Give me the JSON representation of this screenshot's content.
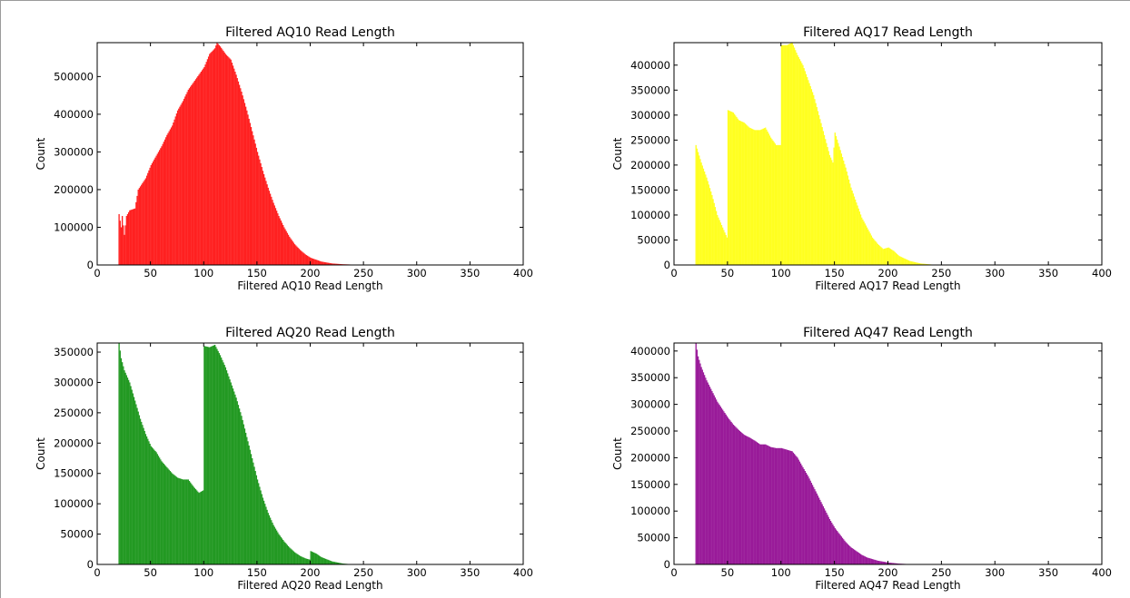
{
  "chart_data": [
    {
      "type": "bar",
      "title": "Filtered AQ10 Read Length",
      "xlabel": "Filtered AQ10 Read Length",
      "ylabel": "Count",
      "xlim": [
        0,
        400
      ],
      "ylim": [
        0,
        590000
      ],
      "xticks": [
        0,
        50,
        100,
        150,
        200,
        250,
        300,
        350,
        400
      ],
      "yticks": [
        0,
        100000,
        200000,
        300000,
        400000,
        500000
      ],
      "grid": false,
      "color": "#ff2020",
      "bar_width": 1,
      "profile": [
        [
          20,
          135000
        ],
        [
          22,
          100000
        ],
        [
          23,
          130000
        ],
        [
          25,
          80000
        ],
        [
          27,
          130000
        ],
        [
          30,
          145000
        ],
        [
          35,
          150000
        ],
        [
          38,
          200000
        ],
        [
          45,
          230000
        ],
        [
          50,
          265000
        ],
        [
          55,
          290000
        ],
        [
          60,
          315000
        ],
        [
          65,
          345000
        ],
        [
          70,
          370000
        ],
        [
          75,
          410000
        ],
        [
          80,
          435000
        ],
        [
          85,
          465000
        ],
        [
          90,
          485000
        ],
        [
          95,
          505000
        ],
        [
          100,
          525000
        ],
        [
          105,
          560000
        ],
        [
          110,
          575000
        ],
        [
          112,
          590000
        ],
        [
          115,
          580000
        ],
        [
          120,
          560000
        ],
        [
          125,
          545000
        ],
        [
          130,
          505000
        ],
        [
          135,
          460000
        ],
        [
          140,
          410000
        ],
        [
          145,
          355000
        ],
        [
          150,
          300000
        ],
        [
          155,
          250000
        ],
        [
          160,
          205000
        ],
        [
          165,
          165000
        ],
        [
          170,
          130000
        ],
        [
          175,
          100000
        ],
        [
          180,
          75000
        ],
        [
          185,
          55000
        ],
        [
          190,
          40000
        ],
        [
          195,
          28000
        ],
        [
          200,
          19000
        ],
        [
          210,
          9000
        ],
        [
          220,
          4000
        ],
        [
          230,
          2000
        ],
        [
          240,
          1000
        ],
        [
          250,
          500
        ],
        [
          255,
          0
        ]
      ]
    },
    {
      "type": "bar",
      "title": "Filtered AQ17 Read Length",
      "xlabel": "Filtered AQ17 Read Length",
      "ylabel": "Count",
      "xlim": [
        0,
        400
      ],
      "ylim": [
        0,
        445000
      ],
      "xticks": [
        0,
        50,
        100,
        150,
        200,
        250,
        300,
        350,
        400
      ],
      "yticks": [
        0,
        50000,
        100000,
        150000,
        200000,
        250000,
        300000,
        350000,
        400000
      ],
      "grid": false,
      "color": "#ffff20",
      "bar_width": 1,
      "profile": [
        [
          20,
          240000
        ],
        [
          25,
          205000
        ],
        [
          30,
          175000
        ],
        [
          35,
          140000
        ],
        [
          40,
          100000
        ],
        [
          45,
          75000
        ],
        [
          49,
          55000
        ],
        [
          50,
          310000
        ],
        [
          55,
          305000
        ],
        [
          60,
          290000
        ],
        [
          65,
          285000
        ],
        [
          70,
          275000
        ],
        [
          75,
          270000
        ],
        [
          80,
          270000
        ],
        [
          85,
          275000
        ],
        [
          90,
          255000
        ],
        [
          95,
          240000
        ],
        [
          99,
          240000
        ],
        [
          100,
          440000
        ],
        [
          105,
          440000
        ],
        [
          110,
          445000
        ],
        [
          115,
          420000
        ],
        [
          120,
          400000
        ],
        [
          125,
          370000
        ],
        [
          130,
          340000
        ],
        [
          135,
          300000
        ],
        [
          140,
          260000
        ],
        [
          145,
          220000
        ],
        [
          148,
          205000
        ],
        [
          150,
          265000
        ],
        [
          155,
          230000
        ],
        [
          160,
          195000
        ],
        [
          165,
          155000
        ],
        [
          170,
          125000
        ],
        [
          175,
          95000
        ],
        [
          180,
          75000
        ],
        [
          185,
          55000
        ],
        [
          190,
          42000
        ],
        [
          195,
          32000
        ],
        [
          200,
          35000
        ],
        [
          205,
          28000
        ],
        [
          210,
          18000
        ],
        [
          220,
          8000
        ],
        [
          230,
          3000
        ],
        [
          240,
          1000
        ],
        [
          245,
          0
        ]
      ]
    },
    {
      "type": "bar",
      "title": "Filtered AQ20 Read Length",
      "xlabel": "Filtered AQ20 Read Length",
      "ylabel": "Count",
      "xlim": [
        0,
        400
      ],
      "ylim": [
        0,
        365000
      ],
      "xticks": [
        0,
        50,
        100,
        150,
        200,
        250,
        300,
        350,
        400
      ],
      "yticks": [
        0,
        50000,
        100000,
        150000,
        200000,
        250000,
        300000,
        350000
      ],
      "grid": false,
      "color": "#229922",
      "bar_width": 1,
      "profile": [
        [
          20,
          365000
        ],
        [
          22,
          340000
        ],
        [
          25,
          320000
        ],
        [
          30,
          300000
        ],
        [
          35,
          270000
        ],
        [
          40,
          240000
        ],
        [
          45,
          215000
        ],
        [
          50,
          195000
        ],
        [
          55,
          185000
        ],
        [
          60,
          170000
        ],
        [
          65,
          160000
        ],
        [
          70,
          150000
        ],
        [
          75,
          143000
        ],
        [
          80,
          140000
        ],
        [
          85,
          140000
        ],
        [
          90,
          128000
        ],
        [
          95,
          118000
        ],
        [
          99,
          122000
        ],
        [
          100,
          360000
        ],
        [
          105,
          358000
        ],
        [
          110,
          362000
        ],
        [
          115,
          345000
        ],
        [
          120,
          325000
        ],
        [
          125,
          300000
        ],
        [
          130,
          275000
        ],
        [
          135,
          245000
        ],
        [
          140,
          210000
        ],
        [
          145,
          175000
        ],
        [
          150,
          140000
        ],
        [
          155,
          110000
        ],
        [
          160,
          85000
        ],
        [
          165,
          65000
        ],
        [
          170,
          50000
        ],
        [
          175,
          38000
        ],
        [
          180,
          28000
        ],
        [
          185,
          20000
        ],
        [
          190,
          14000
        ],
        [
          195,
          10000
        ],
        [
          199,
          8000
        ],
        [
          200,
          22000
        ],
        [
          205,
          18000
        ],
        [
          210,
          12000
        ],
        [
          220,
          5000
        ],
        [
          230,
          1500
        ],
        [
          240,
          0
        ]
      ]
    },
    {
      "type": "bar",
      "title": "Filtered AQ47 Read Length",
      "xlabel": "Filtered AQ47 Read Length",
      "ylabel": "Count",
      "xlim": [
        0,
        400
      ],
      "ylim": [
        0,
        415000
      ],
      "xticks": [
        0,
        50,
        100,
        150,
        200,
        250,
        300,
        350,
        400
      ],
      "yticks": [
        0,
        50000,
        100000,
        150000,
        200000,
        250000,
        300000,
        350000,
        400000
      ],
      "grid": false,
      "color": "#991a99",
      "bar_width": 1,
      "profile": [
        [
          20,
          415000
        ],
        [
          22,
          390000
        ],
        [
          25,
          370000
        ],
        [
          30,
          345000
        ],
        [
          35,
          325000
        ],
        [
          40,
          305000
        ],
        [
          45,
          290000
        ],
        [
          50,
          275000
        ],
        [
          55,
          262000
        ],
        [
          60,
          252000
        ],
        [
          65,
          243000
        ],
        [
          70,
          238000
        ],
        [
          75,
          232000
        ],
        [
          80,
          225000
        ],
        [
          85,
          225000
        ],
        [
          90,
          220000
        ],
        [
          95,
          218000
        ],
        [
          100,
          218000
        ],
        [
          105,
          215000
        ],
        [
          110,
          212000
        ],
        [
          115,
          200000
        ],
        [
          120,
          182000
        ],
        [
          125,
          165000
        ],
        [
          130,
          145000
        ],
        [
          135,
          125000
        ],
        [
          140,
          105000
        ],
        [
          145,
          85000
        ],
        [
          150,
          68000
        ],
        [
          155,
          55000
        ],
        [
          160,
          42000
        ],
        [
          165,
          32000
        ],
        [
          170,
          25000
        ],
        [
          175,
          18000
        ],
        [
          180,
          13000
        ],
        [
          190,
          7000
        ],
        [
          200,
          3500
        ],
        [
          210,
          1500
        ],
        [
          220,
          500
        ],
        [
          225,
          0
        ]
      ]
    }
  ]
}
